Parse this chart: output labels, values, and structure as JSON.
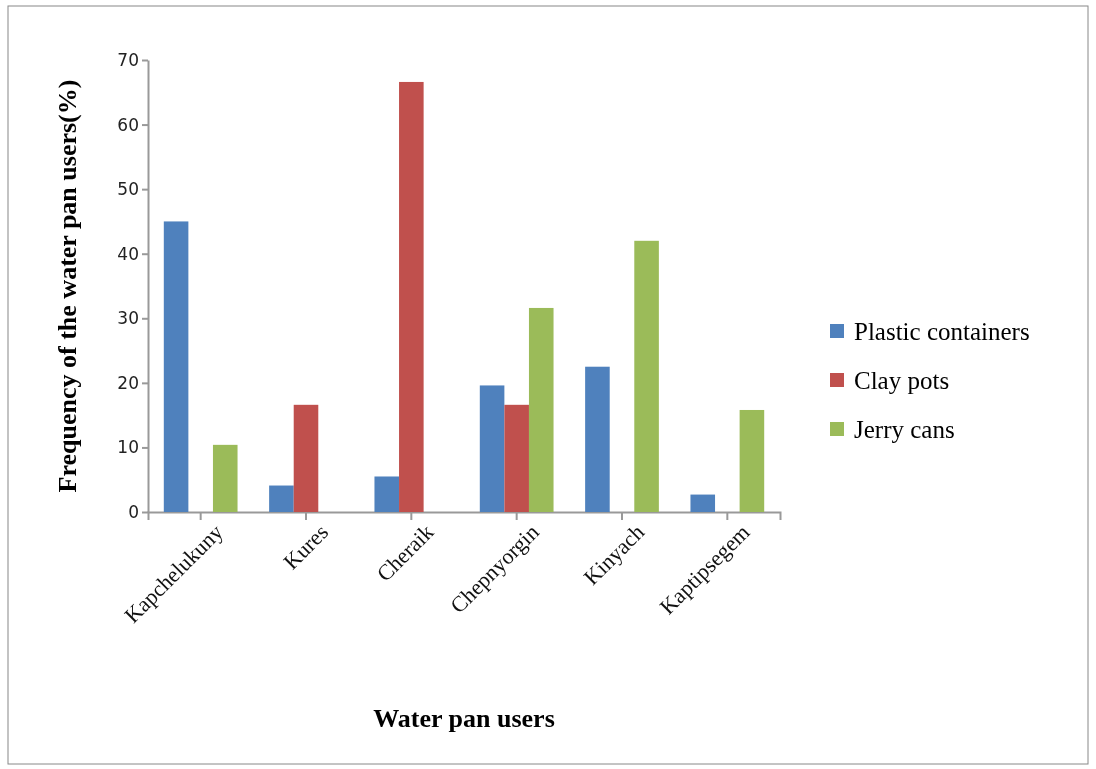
{
  "chart_data": {
    "type": "bar",
    "xlabel": "Water pan users",
    "ylabel": "Frequency of the water pan users(%)",
    "categories": [
      "Kapchelukuny",
      "Kures",
      "Cheraik",
      "Chepnyorgin",
      "Kinyach",
      "Kaptipsegem"
    ],
    "series": [
      {
        "name": "Plastic containers",
        "color": "#4f81bd",
        "values": [
          45,
          4.1,
          5.5,
          19.6,
          22.5,
          2.7
        ]
      },
      {
        "name": "Clay pots",
        "color": "#c0504d",
        "values": [
          0,
          16.6,
          66.6,
          16.6,
          0,
          0
        ]
      },
      {
        "name": "Jerry cans",
        "color": "#9bbb59",
        "values": [
          10.4,
          0,
          0,
          31.6,
          42,
          15.8
        ]
      }
    ],
    "ylim": [
      0,
      70
    ],
    "yticks": [
      0,
      10,
      20,
      30,
      40,
      50,
      60,
      70
    ],
    "legend": "right"
  }
}
